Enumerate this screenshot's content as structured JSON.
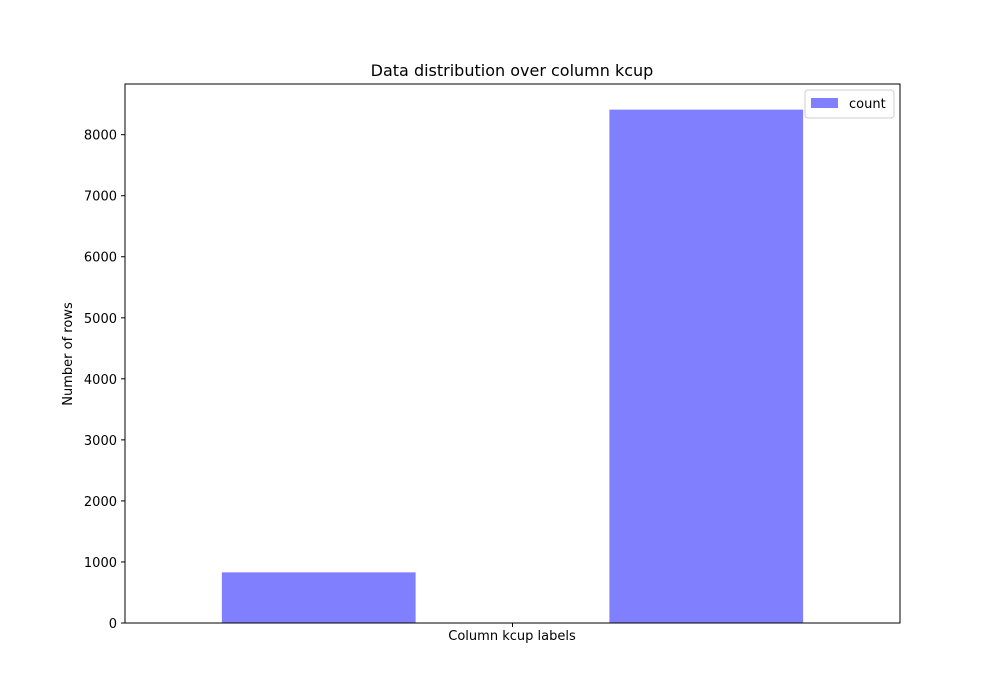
{
  "chart_data": {
    "type": "bar",
    "title": "Data distribution over column kcup",
    "xlabel": "Column kcup labels",
    "ylabel": "Number of rows",
    "categories": [
      "",
      ""
    ],
    "series": [
      {
        "name": "count",
        "values": [
          830,
          8410
        ],
        "color": "#8080ff"
      }
    ],
    "ylim": [
      0,
      8400
    ],
    "yticks": [
      0,
      1000,
      2000,
      3000,
      4000,
      5000,
      6000,
      7000,
      8000
    ],
    "legend_position": "top-right",
    "grid": false
  }
}
